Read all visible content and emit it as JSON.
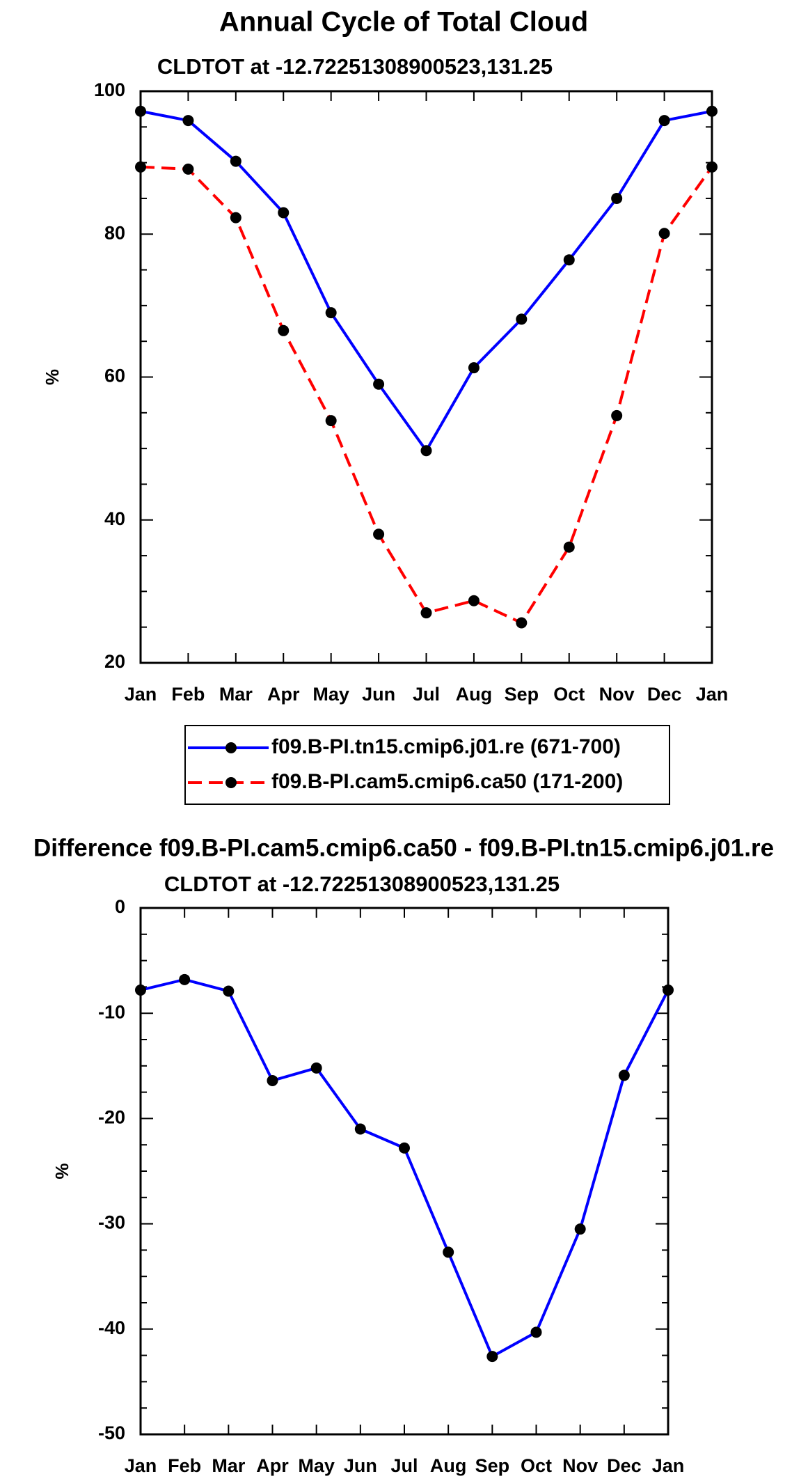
{
  "chart_data": [
    {
      "type": "line",
      "title": "Annual Cycle of Total Cloud",
      "subtitle": "CLDTOT at -12.72251308900523,131.25",
      "xlabel": "",
      "ylabel": "%",
      "categories": [
        "Jan",
        "Feb",
        "Mar",
        "Apr",
        "May",
        "Jun",
        "Jul",
        "Aug",
        "Sep",
        "Oct",
        "Nov",
        "Dec",
        "Jan"
      ],
      "ylim": [
        20,
        100
      ],
      "yticks": [
        20,
        40,
        60,
        80,
        100
      ],
      "yticklabels": [
        "20",
        "40",
        "60",
        "80",
        "100"
      ],
      "grid": false,
      "legend_position": "below",
      "series": [
        {
          "name": "f09.B-PI.tn15.cmip6.j01.re (671-700)",
          "color": "#0000ff",
          "dash": "solid",
          "values": [
            97.2,
            95.9,
            90.2,
            83.0,
            69.0,
            59.0,
            49.7,
            61.3,
            68.1,
            76.4,
            85.0,
            95.9,
            97.2
          ]
        },
        {
          "name": "f09.B-PI.cam5.cmip6.ca50 (171-200)",
          "color": "#ff0000",
          "dash": "dashed",
          "values": [
            89.4,
            89.1,
            82.3,
            66.5,
            53.9,
            38.0,
            27.0,
            28.7,
            25.6,
            36.2,
            54.6,
            80.1,
            89.4
          ]
        }
      ]
    },
    {
      "type": "line",
      "title": "Difference f09.B-PI.cam5.cmip6.ca50 - f09.B-PI.tn15.cmip6.j01.re",
      "subtitle": "CLDTOT at -12.72251308900523,131.25",
      "xlabel": "",
      "ylabel": "%",
      "categories": [
        "Jan",
        "Feb",
        "Mar",
        "Apr",
        "May",
        "Jun",
        "Jul",
        "Aug",
        "Sep",
        "Oct",
        "Nov",
        "Dec",
        "Jan"
      ],
      "ylim": [
        -50,
        0
      ],
      "yticks": [
        -50,
        -40,
        -30,
        -20,
        -10,
        0
      ],
      "yticklabels": [
        "-50",
        "-40",
        "-30",
        "-20",
        "-10",
        "0"
      ],
      "grid": false,
      "series": [
        {
          "name": "Difference",
          "color": "#0000ff",
          "dash": "solid",
          "values": [
            -7.8,
            -6.8,
            -7.9,
            -16.4,
            -15.2,
            -21.0,
            -22.8,
            -32.7,
            -42.6,
            -40.3,
            -30.5,
            -15.9,
            -7.8
          ]
        }
      ]
    }
  ]
}
